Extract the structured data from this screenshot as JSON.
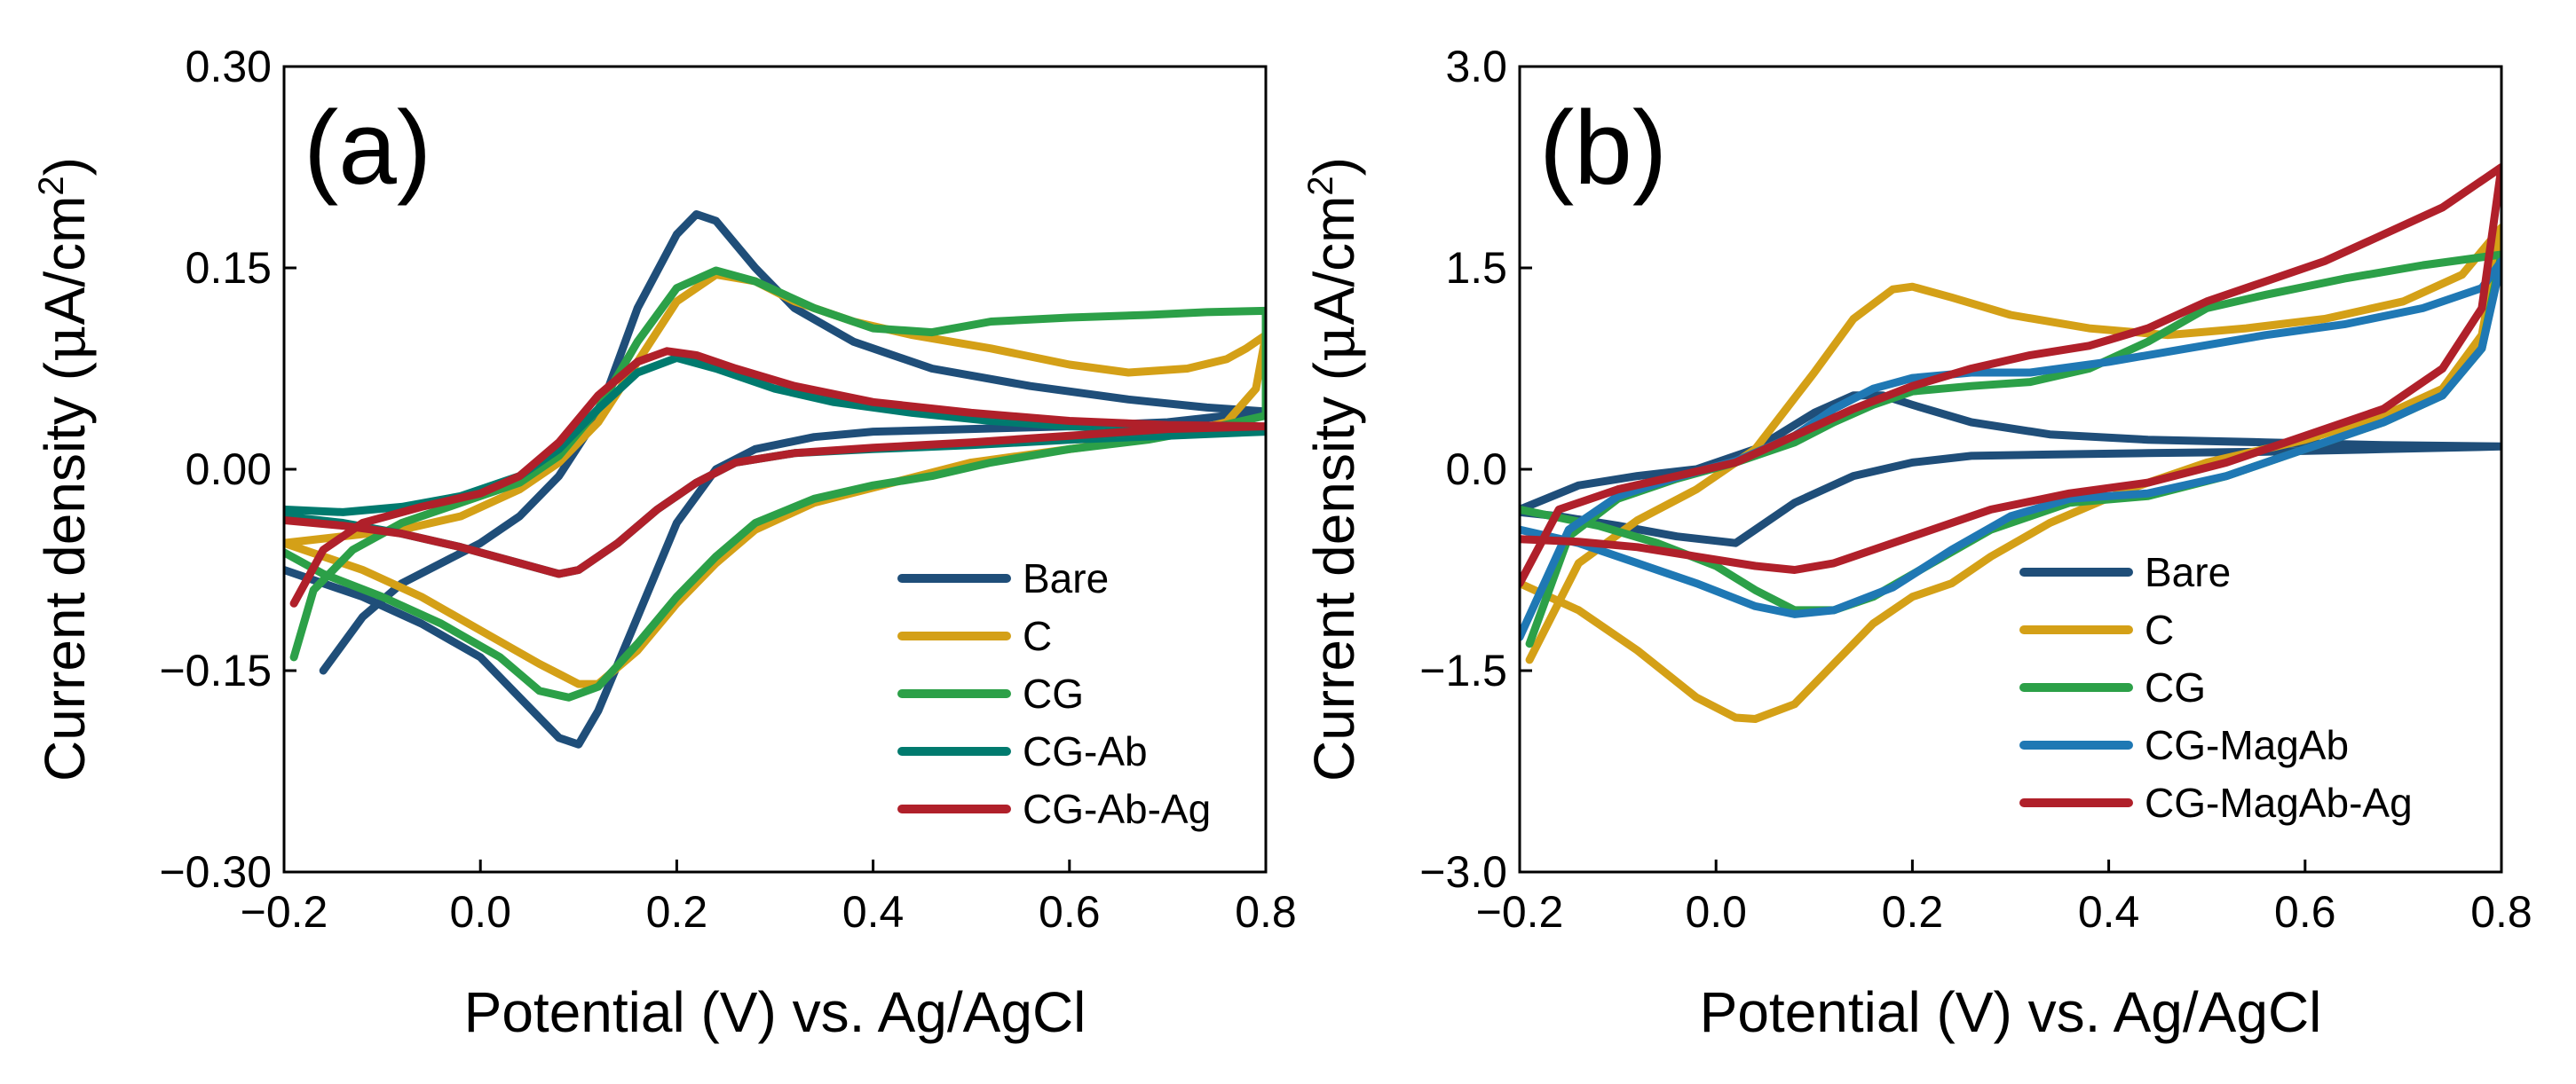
{
  "chart_data": [
    {
      "type": "line",
      "panel_label": "(a)",
      "xlabel": "Potential (V) vs. Ag/AgCl",
      "ylabel_prefix": "Current density (",
      "ylabel_mu": "μ",
      "ylabel_unit": "A/cm",
      "ylabel_sup": "2",
      "ylabel_suffix": ")",
      "xlim": [
        -0.2,
        0.8
      ],
      "ylim": [
        -0.3,
        0.3
      ],
      "xticks": [
        -0.2,
        0.0,
        0.2,
        0.4,
        0.6,
        0.8
      ],
      "yticks": [
        -0.3,
        -0.15,
        0.0,
        0.15,
        0.3
      ],
      "xtick_labels": [
        "−0.2",
        "0.0",
        "0.2",
        "0.4",
        "0.6",
        "0.8"
      ],
      "ytick_labels": [
        "−0.30",
        "−0.15",
        "0.00",
        "0.15",
        "0.30"
      ],
      "legend_position": "bottom-right",
      "series": [
        {
          "name": "Bare",
          "color": "#1f4e79",
          "x": [
            -0.16,
            -0.12,
            -0.08,
            -0.04,
            0.0,
            0.04,
            0.08,
            0.12,
            0.16,
            0.2,
            0.22,
            0.24,
            0.28,
            0.32,
            0.38,
            0.46,
            0.56,
            0.66,
            0.74,
            0.8,
            0.8,
            0.7,
            0.6,
            0.5,
            0.4,
            0.34,
            0.28,
            0.24,
            0.2,
            0.16,
            0.12,
            0.1,
            0.08,
            0.04,
            0.0,
            -0.06,
            -0.12,
            -0.2
          ],
          "y": [
            -0.15,
            -0.11,
            -0.085,
            -0.07,
            -0.055,
            -0.035,
            -0.005,
            0.04,
            0.12,
            0.175,
            0.19,
            0.185,
            0.15,
            0.12,
            0.095,
            0.075,
            0.062,
            0.052,
            0.046,
            0.043,
            0.043,
            0.035,
            0.032,
            0.03,
            0.028,
            0.024,
            0.015,
            0.0,
            -0.04,
            -0.11,
            -0.18,
            -0.205,
            -0.2,
            -0.17,
            -0.14,
            -0.115,
            -0.095,
            -0.075
          ]
        },
        {
          "name": "C",
          "color": "#d4a017",
          "x": [
            -0.2,
            -0.14,
            -0.08,
            -0.02,
            0.04,
            0.08,
            0.12,
            0.16,
            0.2,
            0.24,
            0.28,
            0.32,
            0.38,
            0.44,
            0.52,
            0.6,
            0.66,
            0.72,
            0.76,
            0.78,
            0.8,
            0.8,
            0.79,
            0.76,
            0.7,
            0.6,
            0.5,
            0.42,
            0.34,
            0.28,
            0.24,
            0.2,
            0.16,
            0.12,
            0.1,
            0.06,
            0.0,
            -0.06,
            -0.12,
            -0.2
          ],
          "y": [
            -0.055,
            -0.05,
            -0.045,
            -0.035,
            -0.015,
            0.005,
            0.035,
            0.08,
            0.125,
            0.145,
            0.14,
            0.125,
            0.11,
            0.1,
            0.09,
            0.078,
            0.072,
            0.075,
            0.082,
            0.09,
            0.1,
            0.1,
            0.06,
            0.035,
            0.025,
            0.015,
            0.005,
            -0.01,
            -0.025,
            -0.045,
            -0.07,
            -0.1,
            -0.135,
            -0.16,
            -0.16,
            -0.145,
            -0.12,
            -0.095,
            -0.075,
            -0.055
          ]
        },
        {
          "name": "CG",
          "color": "#2ca048",
          "x": [
            -0.19,
            -0.17,
            -0.13,
            -0.08,
            -0.02,
            0.04,
            0.08,
            0.12,
            0.16,
            0.2,
            0.24,
            0.28,
            0.34,
            0.4,
            0.46,
            0.52,
            0.6,
            0.68,
            0.74,
            0.8,
            0.8,
            0.74,
            0.68,
            0.6,
            0.52,
            0.46,
            0.4,
            0.34,
            0.28,
            0.24,
            0.2,
            0.16,
            0.12,
            0.09,
            0.06,
            0.02,
            -0.04,
            -0.1,
            -0.16,
            -0.2
          ],
          "y": [
            -0.14,
            -0.09,
            -0.06,
            -0.04,
            -0.025,
            -0.01,
            0.01,
            0.045,
            0.095,
            0.135,
            0.148,
            0.14,
            0.12,
            0.105,
            0.102,
            0.11,
            0.113,
            0.115,
            0.117,
            0.118,
            0.04,
            0.03,
            0.022,
            0.015,
            0.005,
            -0.005,
            -0.012,
            -0.022,
            -0.04,
            -0.065,
            -0.095,
            -0.13,
            -0.162,
            -0.17,
            -0.165,
            -0.14,
            -0.115,
            -0.095,
            -0.078,
            -0.062
          ]
        },
        {
          "name": "CG-Ab",
          "color": "#007a6e",
          "x": [
            -0.2,
            -0.14,
            -0.08,
            -0.02,
            0.04,
            0.08,
            0.12,
            0.16,
            0.2,
            0.24,
            0.3,
            0.36,
            0.44,
            0.52,
            0.6,
            0.7,
            0.8,
            0.8,
            0.7,
            0.6,
            0.5,
            0.4,
            0.32,
            0.26,
            0.22,
            0.18,
            0.14,
            0.1,
            0.08,
            0.04,
            -0.02,
            -0.08,
            -0.14,
            -0.2
          ],
          "y": [
            -0.03,
            -0.032,
            -0.028,
            -0.02,
            -0.005,
            0.015,
            0.045,
            0.072,
            0.083,
            0.075,
            0.06,
            0.05,
            0.042,
            0.036,
            0.032,
            0.03,
            0.028,
            0.028,
            0.025,
            0.022,
            0.018,
            0.015,
            0.012,
            0.005,
            -0.01,
            -0.03,
            -0.055,
            -0.075,
            -0.078,
            -0.07,
            -0.058,
            -0.048,
            -0.04,
            -0.035
          ]
        },
        {
          "name": "CG-Ab-Ag",
          "color": "#b0202a",
          "x": [
            -0.19,
            -0.16,
            -0.12,
            -0.06,
            0.0,
            0.04,
            0.08,
            0.12,
            0.16,
            0.19,
            0.22,
            0.26,
            0.32,
            0.4,
            0.5,
            0.6,
            0.7,
            0.8,
            0.8,
            0.7,
            0.6,
            0.5,
            0.4,
            0.32,
            0.26,
            0.22,
            0.18,
            0.14,
            0.1,
            0.08,
            0.04,
            -0.02,
            -0.08,
            -0.14,
            -0.2
          ],
          "y": [
            -0.1,
            -0.06,
            -0.04,
            -0.028,
            -0.018,
            -0.005,
            0.02,
            0.055,
            0.08,
            0.088,
            0.085,
            0.075,
            0.062,
            0.05,
            0.042,
            0.036,
            0.033,
            0.032,
            0.032,
            0.03,
            0.025,
            0.02,
            0.016,
            0.012,
            0.005,
            -0.01,
            -0.03,
            -0.055,
            -0.075,
            -0.078,
            -0.07,
            -0.058,
            -0.048,
            -0.042,
            -0.038
          ]
        }
      ]
    },
    {
      "type": "line",
      "panel_label": "(b)",
      "xlabel": "Potential (V) vs. Ag/AgCl",
      "ylabel_prefix": "Current density (",
      "ylabel_mu": "μ",
      "ylabel_unit": "A/cm",
      "ylabel_sup": "2",
      "ylabel_suffix": ")",
      "xlim": [
        -0.2,
        0.8
      ],
      "ylim": [
        -3.0,
        3.0
      ],
      "xticks": [
        -0.2,
        0.0,
        0.2,
        0.4,
        0.6,
        0.8
      ],
      "yticks": [
        -3.0,
        -1.5,
        0.0,
        1.5,
        3.0
      ],
      "xtick_labels": [
        "−0.2",
        "0.0",
        "0.2",
        "0.4",
        "0.6",
        "0.8"
      ],
      "ytick_labels": [
        "−3.0",
        "−1.5",
        "0.0",
        "1.5",
        "3.0"
      ],
      "legend_position": "bottom-right",
      "series": [
        {
          "name": "Bare",
          "color": "#1f4e79",
          "x": [
            -0.2,
            -0.14,
            -0.08,
            -0.02,
            0.04,
            0.1,
            0.14,
            0.17,
            0.2,
            0.26,
            0.34,
            0.44,
            0.56,
            0.68,
            0.8,
            0.8,
            0.68,
            0.56,
            0.44,
            0.34,
            0.26,
            0.2,
            0.14,
            0.08,
            0.04,
            0.02,
            -0.04,
            -0.1,
            -0.16,
            -0.2
          ],
          "y": [
            -0.3,
            -0.12,
            -0.05,
            0.0,
            0.15,
            0.42,
            0.55,
            0.55,
            0.48,
            0.35,
            0.26,
            0.22,
            0.2,
            0.18,
            0.17,
            0.17,
            0.15,
            0.13,
            0.12,
            0.11,
            0.1,
            0.05,
            -0.05,
            -0.25,
            -0.45,
            -0.55,
            -0.5,
            -0.42,
            -0.35,
            -0.32
          ]
        },
        {
          "name": "C",
          "color": "#d4a017",
          "x": [
            -0.19,
            -0.14,
            -0.08,
            -0.02,
            0.04,
            0.1,
            0.14,
            0.18,
            0.2,
            0.24,
            0.3,
            0.38,
            0.46,
            0.54,
            0.62,
            0.7,
            0.76,
            0.8,
            0.8,
            0.78,
            0.74,
            0.68,
            0.6,
            0.5,
            0.42,
            0.34,
            0.28,
            0.24,
            0.2,
            0.16,
            0.12,
            0.08,
            0.04,
            0.02,
            -0.02,
            -0.08,
            -0.14,
            -0.2
          ],
          "y": [
            -1.42,
            -0.7,
            -0.38,
            -0.15,
            0.15,
            0.72,
            1.12,
            1.34,
            1.36,
            1.28,
            1.15,
            1.05,
            1.0,
            1.05,
            1.12,
            1.25,
            1.45,
            1.8,
            1.8,
            1.0,
            0.6,
            0.4,
            0.22,
            0.05,
            -0.15,
            -0.4,
            -0.65,
            -0.85,
            -0.95,
            -1.15,
            -1.45,
            -1.75,
            -1.86,
            -1.85,
            -1.7,
            -1.35,
            -1.05,
            -0.85
          ]
        },
        {
          "name": "CG",
          "color": "#2ca048",
          "x": [
            -0.19,
            -0.15,
            -0.1,
            -0.04,
            0.02,
            0.08,
            0.12,
            0.16,
            0.2,
            0.26,
            0.32,
            0.38,
            0.44,
            0.5,
            0.56,
            0.64,
            0.72,
            0.8,
            0.8,
            0.78,
            0.74,
            0.68,
            0.6,
            0.52,
            0.44,
            0.36,
            0.28,
            0.22,
            0.16,
            0.12,
            0.08,
            0.04,
            0.0,
            -0.06,
            -0.12,
            -0.2
          ],
          "y": [
            -1.3,
            -0.5,
            -0.22,
            -0.07,
            0.05,
            0.2,
            0.35,
            0.48,
            0.58,
            0.62,
            0.65,
            0.75,
            0.95,
            1.2,
            1.3,
            1.42,
            1.52,
            1.6,
            1.6,
            0.9,
            0.55,
            0.35,
            0.15,
            -0.05,
            -0.2,
            -0.25,
            -0.45,
            -0.7,
            -0.95,
            -1.05,
            -1.05,
            -0.9,
            -0.72,
            -0.55,
            -0.42,
            -0.3
          ]
        },
        {
          "name": "CG-MagAb",
          "color": "#1f78b4",
          "x": [
            -0.2,
            -0.15,
            -0.1,
            -0.04,
            0.02,
            0.08,
            0.12,
            0.16,
            0.2,
            0.26,
            0.32,
            0.4,
            0.48,
            0.56,
            0.64,
            0.72,
            0.78,
            0.8,
            0.8,
            0.78,
            0.74,
            0.68,
            0.6,
            0.52,
            0.44,
            0.36,
            0.3,
            0.24,
            0.18,
            0.12,
            0.08,
            0.04,
            -0.02,
            -0.08,
            -0.14,
            -0.2
          ],
          "y": [
            -1.25,
            -0.45,
            -0.2,
            -0.06,
            0.06,
            0.25,
            0.45,
            0.6,
            0.68,
            0.72,
            0.72,
            0.8,
            0.9,
            1.0,
            1.08,
            1.2,
            1.35,
            1.55,
            1.55,
            0.9,
            0.55,
            0.35,
            0.15,
            -0.05,
            -0.18,
            -0.22,
            -0.35,
            -0.6,
            -0.88,
            -1.05,
            -1.08,
            -1.02,
            -0.85,
            -0.7,
            -0.55,
            -0.45
          ]
        },
        {
          "name": "CG-MagAb-Ag",
          "color": "#b0202a",
          "x": [
            -0.2,
            -0.16,
            -0.1,
            -0.04,
            0.02,
            0.08,
            0.14,
            0.2,
            0.26,
            0.32,
            0.38,
            0.44,
            0.5,
            0.56,
            0.62,
            0.68,
            0.74,
            0.8,
            0.8,
            0.78,
            0.74,
            0.68,
            0.6,
            0.52,
            0.44,
            0.36,
            0.28,
            0.22,
            0.16,
            0.12,
            0.08,
            0.04,
            -0.02,
            -0.08,
            -0.14,
            -0.2
          ],
          "y": [
            -0.85,
            -0.3,
            -0.15,
            -0.05,
            0.05,
            0.25,
            0.45,
            0.62,
            0.75,
            0.85,
            0.92,
            1.05,
            1.25,
            1.4,
            1.55,
            1.75,
            1.95,
            2.25,
            2.25,
            1.2,
            0.75,
            0.45,
            0.25,
            0.05,
            -0.1,
            -0.18,
            -0.3,
            -0.45,
            -0.6,
            -0.7,
            -0.75,
            -0.72,
            -0.65,
            -0.58,
            -0.54,
            -0.52
          ]
        }
      ]
    }
  ]
}
